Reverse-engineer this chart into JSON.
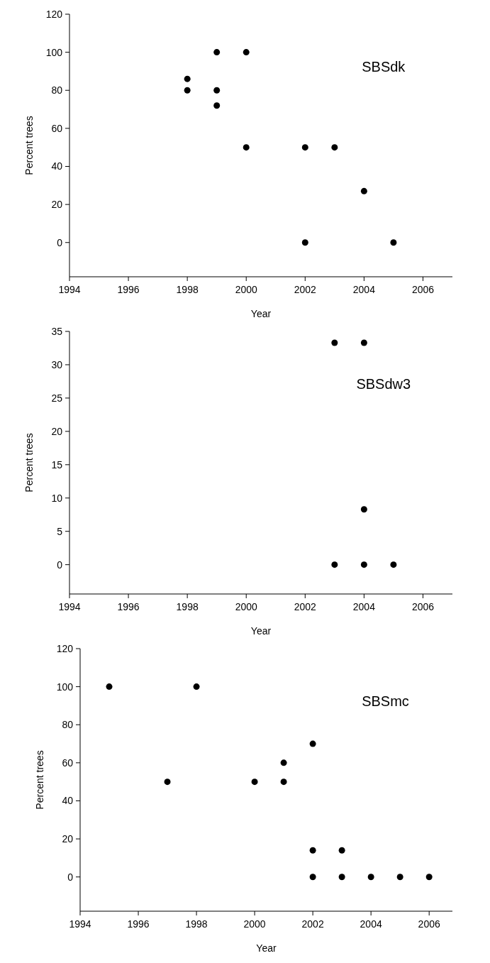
{
  "chart_data": [
    {
      "type": "scatter",
      "xlabel": "Year",
      "ylabel": "Percent trees",
      "annotations": [
        "SBSdk"
      ],
      "xlim": [
        1994,
        2007
      ],
      "xticks": [
        1994,
        1996,
        1998,
        2000,
        2002,
        2004,
        2006
      ],
      "ylim": [
        -18,
        120
      ],
      "yticks": [
        0,
        20,
        40,
        60,
        80,
        100,
        120
      ],
      "marker": "circle",
      "grid": false,
      "series": [
        {
          "color": "#000000",
          "x": [
            1998,
            1998,
            1999,
            1999,
            1999,
            2000,
            2000,
            2002,
            2002,
            2003,
            2004,
            2005
          ],
          "values": [
            86,
            80,
            100,
            80,
            72,
            100,
            50,
            50,
            0,
            50,
            27,
            0
          ]
        }
      ]
    },
    {
      "type": "scatter",
      "xlabel": "Year",
      "ylabel": "Percent trees",
      "annotations": [
        "SBSdw3"
      ],
      "xlim": [
        1994,
        2007
      ],
      "xticks": [
        1994,
        1996,
        1998,
        2000,
        2002,
        2004,
        2006
      ],
      "ylim": [
        -4.4,
        35
      ],
      "yticks": [
        0,
        5,
        10,
        15,
        20,
        25,
        30,
        35
      ],
      "marker": "circle",
      "grid": false,
      "series": [
        {
          "color": "#000000",
          "x": [
            2003,
            2003,
            2004,
            2004,
            2004,
            2005
          ],
          "values": [
            33.3,
            0,
            33.3,
            8.3,
            0,
            0
          ]
        }
      ]
    },
    {
      "type": "scatter",
      "xlabel": "Year",
      "ylabel": "Percent trees",
      "annotations": [
        "SBSmc"
      ],
      "xlim": [
        1994,
        2006.8
      ],
      "xticks": [
        1994,
        1996,
        1998,
        2000,
        2002,
        2004,
        2006
      ],
      "ylim": [
        -18,
        120
      ],
      "yticks": [
        0,
        20,
        40,
        60,
        80,
        100,
        120
      ],
      "marker": "circle",
      "grid": false,
      "series": [
        {
          "color": "#000000",
          "x": [
            1995,
            1997,
            1998,
            2000,
            2001,
            2001,
            2002,
            2002,
            2002,
            2003,
            2003,
            2004,
            2005,
            2006
          ],
          "values": [
            100,
            50,
            100,
            50,
            60,
            50,
            70,
            14,
            0,
            14,
            0,
            0,
            0,
            0
          ]
        }
      ]
    }
  ]
}
